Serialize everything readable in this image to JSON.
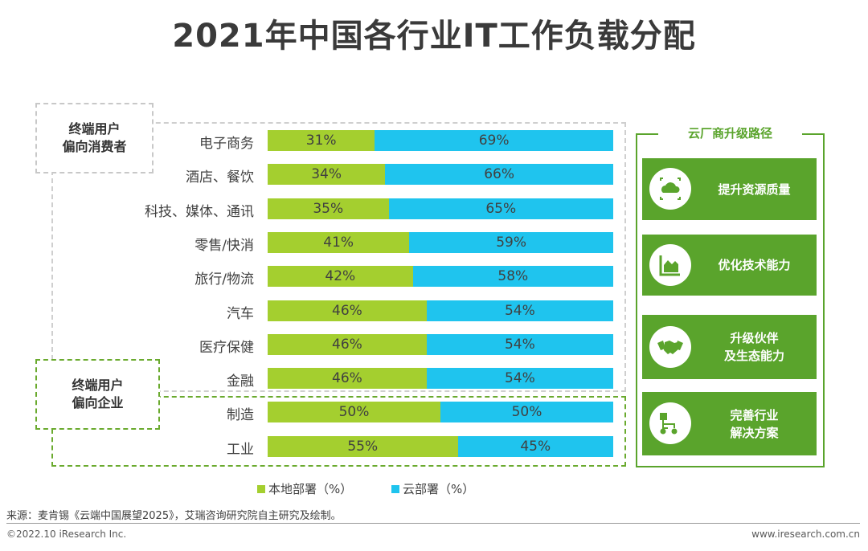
{
  "title": "2021年中国各行业IT工作负载分配",
  "segments": {
    "consumer": "终端用户\n偏向消费者",
    "enterprise": "终端用户\n偏向企业"
  },
  "chart_data": {
    "type": "bar",
    "orientation": "horizontal",
    "stacked": true,
    "percent_stacked": true,
    "title": "2021年中国各行业IT工作负载分配",
    "categories": [
      "电子商务",
      "酒店、餐饮",
      "科技、媒体、通讯",
      "零售/快消",
      "旅行/物流",
      "汽车",
      "医疗保健",
      "金融",
      "制造",
      "工业"
    ],
    "series": [
      {
        "name": "本地部署（%）",
        "color": "#a4cf2f",
        "values": [
          31,
          34,
          35,
          41,
          42,
          46,
          46,
          46,
          50,
          55
        ]
      },
      {
        "name": "云部署（%）",
        "color": "#1fc4ee",
        "values": [
          69,
          66,
          65,
          59,
          58,
          54,
          54,
          54,
          50,
          45
        ]
      }
    ],
    "data_labels": [
      [
        "31%",
        "34%",
        "35%",
        "41%",
        "42%",
        "46%",
        "46%",
        "46%",
        "50%",
        "55%"
      ],
      [
        "69%",
        "66%",
        "65%",
        "59%",
        "58%",
        "54%",
        "54%",
        "54%",
        "50%",
        "45%"
      ]
    ],
    "xlim": [
      0,
      100
    ],
    "legend": "bottom"
  },
  "panel": {
    "title": "云厂商升级路径",
    "items": [
      {
        "label": "提升资源质量",
        "icon": "cloud-icon"
      },
      {
        "label": "优化技术能力",
        "icon": "area-chart-icon"
      },
      {
        "label": "升级伙伴\n及生态能力",
        "icon": "handshake-icon"
      },
      {
        "label": "完善行业\n解决方案",
        "icon": "flowchart-icon"
      }
    ]
  },
  "footer": {
    "source": "来源：麦肯锡《云端中国展望2025》，艾瑞咨询研究院自主研究及绘制。",
    "copyright": "©2022.10 iResearch Inc.",
    "website": "www.iresearch.com.cn"
  },
  "colors": {
    "accent_green": "#5aa42c",
    "local": "#a4cf2f",
    "cloud": "#1fc4ee"
  }
}
